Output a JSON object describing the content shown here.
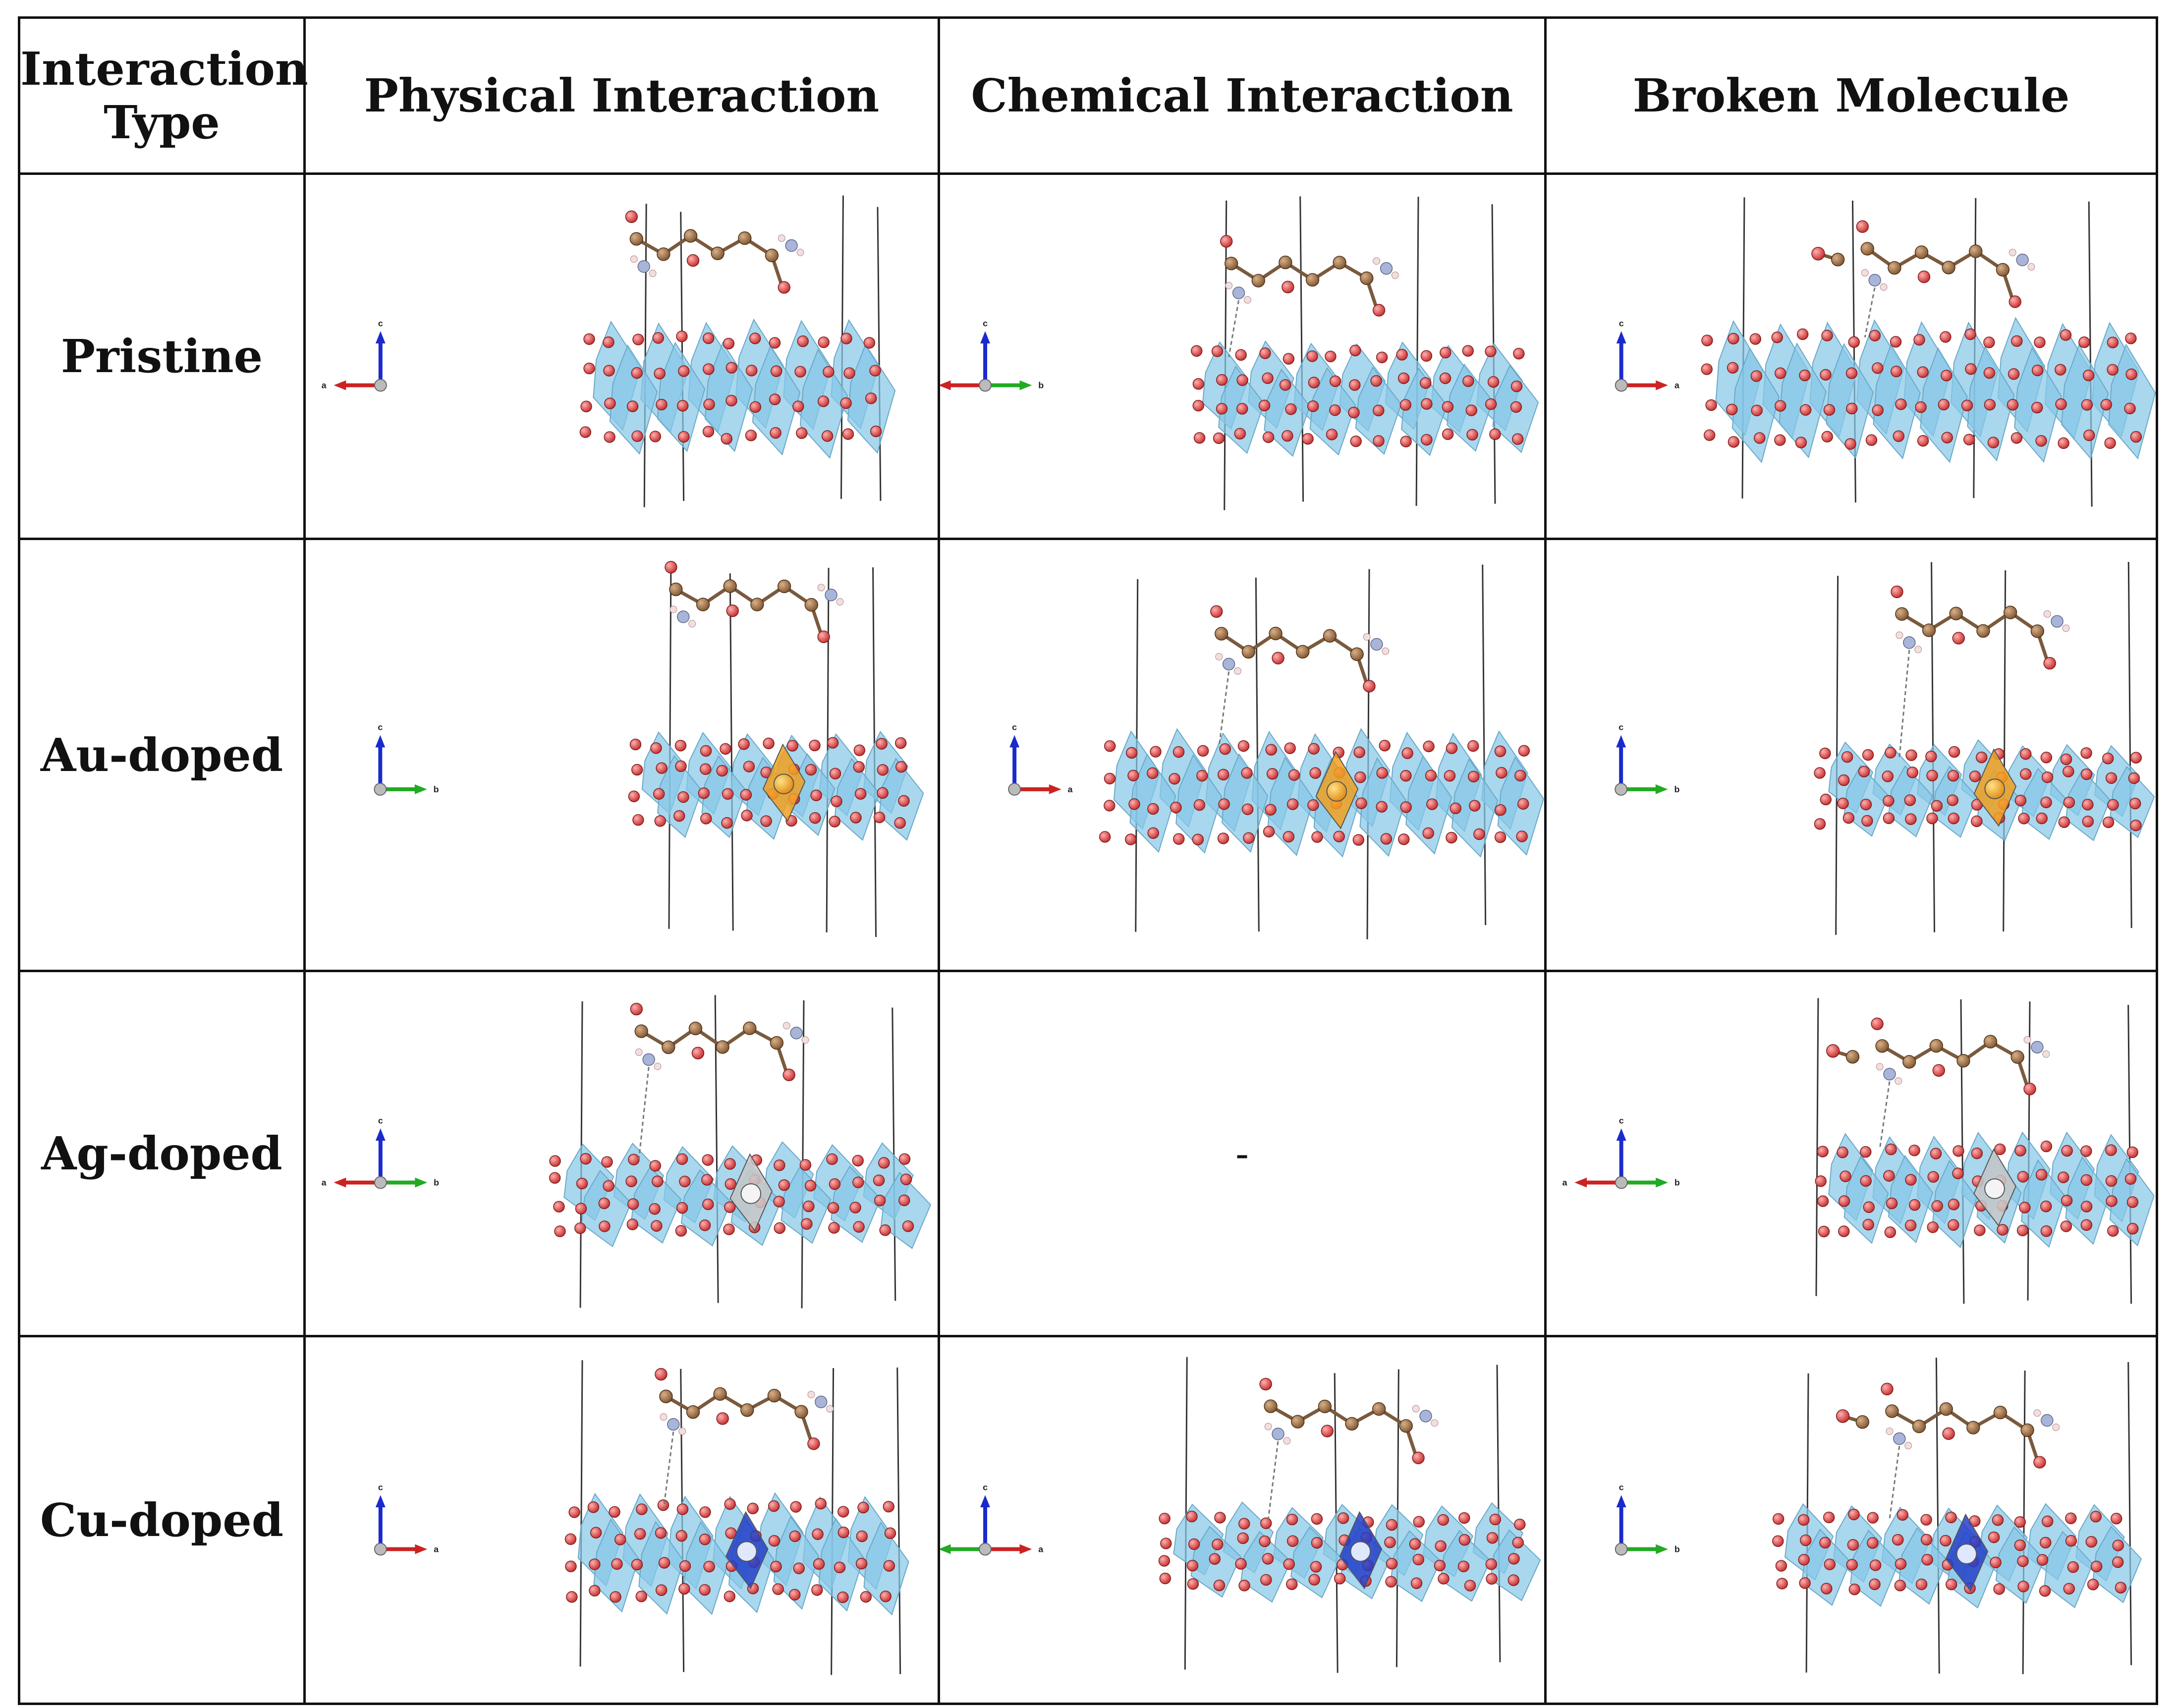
{
  "table": {
    "header": {
      "interaction_type": "Interaction Type",
      "physical": "Physical Interaction",
      "chemical": "Chemical Interaction",
      "broken": "Broken Molecule"
    },
    "rows": [
      {
        "label": "Pristine",
        "dopant_color": ""
      },
      {
        "label": "Au-doped",
        "dopant_color": "#f0a020"
      },
      {
        "label": "Ag-doped",
        "dopant_color": "#c8c8c8"
      },
      {
        "label": "Cu-doped",
        "dopant_color": "#2440c8"
      }
    ],
    "empty_cell": "-"
  },
  "axis_labels": {
    "a": "a",
    "b": "b",
    "c": "c"
  },
  "colors": {
    "polyhedra": "#86c8e8",
    "oxygen": "#d83a3a",
    "carbon": "#9a6a3e",
    "nitrogen": "#a8b4d8",
    "hydrogen": "#f2dede",
    "axis_a": "#cc2222",
    "axis_b": "#22aa22",
    "axis_c": "#1a2acc"
  }
}
